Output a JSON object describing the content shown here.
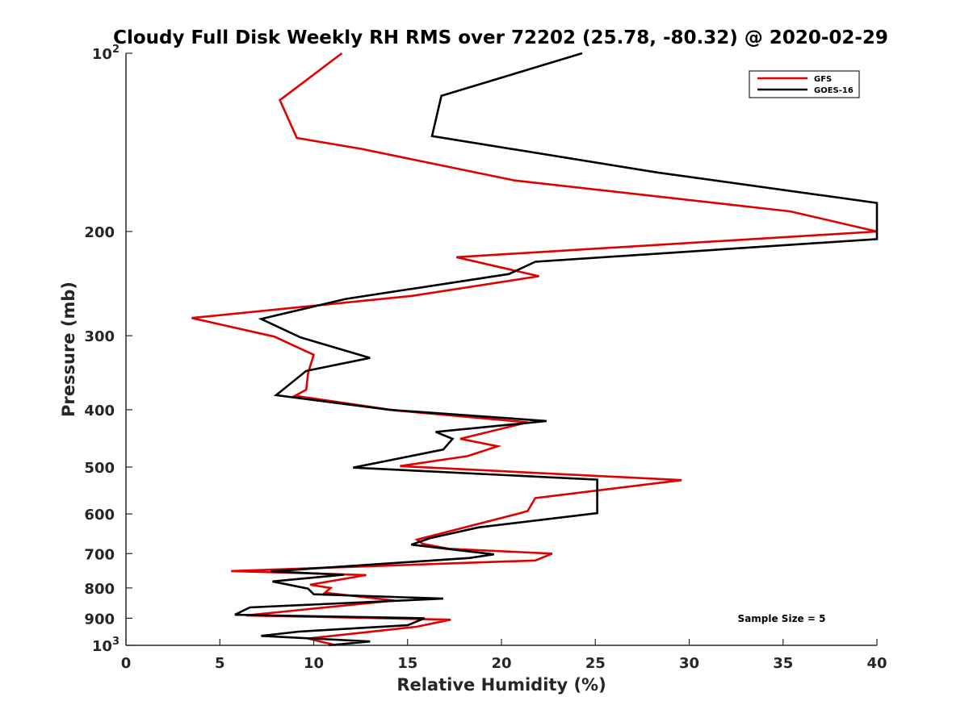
{
  "chart_data": {
    "type": "line",
    "title": "Cloudy Full Disk Weekly RH RMS over 72202 (25.78, -80.32) @ 2020-02-29",
    "xlabel": "Relative Humidity (%)",
    "ylabel": "Pressure (mb)",
    "xlim": [
      0,
      40
    ],
    "ylim": [
      100,
      1000
    ],
    "yscale": "log",
    "y_reversed": true,
    "x_ticks": [
      "0",
      "5",
      "10",
      "15",
      "20",
      "25",
      "30",
      "35",
      "40"
    ],
    "y_ticks": [
      {
        "value": 100,
        "base": "10",
        "exp": "2"
      },
      {
        "value": 200,
        "label": "200"
      },
      {
        "value": 300,
        "label": "300"
      },
      {
        "value": 400,
        "label": "400"
      },
      {
        "value": 500,
        "label": "500"
      },
      {
        "value": 600,
        "label": "600"
      },
      {
        "value": 700,
        "label": "700"
      },
      {
        "value": 800,
        "label": "800"
      },
      {
        "value": 900,
        "label": "900"
      },
      {
        "value": 1000,
        "base": "10",
        "exp": "3"
      }
    ],
    "grid": false,
    "legend_position": "top-right",
    "annotation": "Sample Size = 5",
    "series": [
      {
        "name": "GFS",
        "color": "#e00000",
        "points": [
          [
            11.5,
            100
          ],
          [
            8.2,
            120
          ],
          [
            9.1,
            139
          ],
          [
            12.5,
            145
          ],
          [
            20.7,
            164
          ],
          [
            35.4,
            185
          ],
          [
            40,
            200
          ],
          [
            17.6,
            221
          ],
          [
            22.0,
            238
          ],
          [
            15.2,
            257
          ],
          [
            3.5,
            280
          ],
          [
            7.9,
            301
          ],
          [
            10.0,
            323
          ],
          [
            9.7,
            347
          ],
          [
            9.6,
            370
          ],
          [
            9.0,
            379
          ],
          [
            14.3,
            401
          ],
          [
            21.4,
            420
          ],
          [
            17.8,
            448
          ],
          [
            19.8,
            461
          ],
          [
            18.2,
            479
          ],
          [
            14.6,
            498
          ],
          [
            29.6,
            526
          ],
          [
            21.8,
            564
          ],
          [
            21.4,
            593
          ],
          [
            21.0,
            598
          ],
          [
            15.5,
            663
          ],
          [
            15.8,
            674
          ],
          [
            17.2,
            687
          ],
          [
            22.7,
            700
          ],
          [
            21.8,
            719
          ],
          [
            5.6,
            749
          ],
          [
            12.8,
            761
          ],
          [
            9.8,
            790
          ],
          [
            10.9,
            800
          ],
          [
            10.6,
            815
          ],
          [
            14.3,
            840
          ],
          [
            6.4,
            890
          ],
          [
            17.3,
            905
          ],
          [
            15.5,
            930
          ],
          [
            9.7,
            974
          ],
          [
            11.2,
            1000
          ]
        ]
      },
      {
        "name": "GOES-16",
        "color": "#000000",
        "points": [
          [
            24.3,
            100
          ],
          [
            16.8,
            118
          ],
          [
            16.3,
            138
          ],
          [
            28.3,
            159
          ],
          [
            40,
            179
          ],
          [
            40,
            206
          ],
          [
            21.8,
            225
          ],
          [
            20.4,
            236
          ],
          [
            11.7,
            260
          ],
          [
            7.2,
            281
          ],
          [
            9.3,
            302
          ],
          [
            13.0,
            327
          ],
          [
            9.6,
            344
          ],
          [
            8.0,
            378
          ],
          [
            14.0,
            400
          ],
          [
            22.4,
            418
          ],
          [
            16.5,
            436
          ],
          [
            17.4,
            448
          ],
          [
            16.9,
            467
          ],
          [
            12.1,
            501
          ],
          [
            25.1,
            525
          ],
          [
            25.1,
            560
          ],
          [
            25.1,
            598
          ],
          [
            18.8,
            632
          ],
          [
            16.2,
            659
          ],
          [
            15.2,
            676
          ],
          [
            19.6,
            702
          ],
          [
            18.3,
            712
          ],
          [
            7.7,
            750
          ],
          [
            11.6,
            760
          ],
          [
            7.8,
            780
          ],
          [
            9.7,
            802
          ],
          [
            10.0,
            820
          ],
          [
            16.9,
            834
          ],
          [
            6.6,
            863
          ],
          [
            5.8,
            888
          ],
          [
            15.9,
            900
          ],
          [
            15.0,
            925
          ],
          [
            9.2,
            948
          ],
          [
            7.2,
            964
          ],
          [
            13.0,
            985
          ],
          [
            10.8,
            1000
          ]
        ]
      }
    ]
  }
}
